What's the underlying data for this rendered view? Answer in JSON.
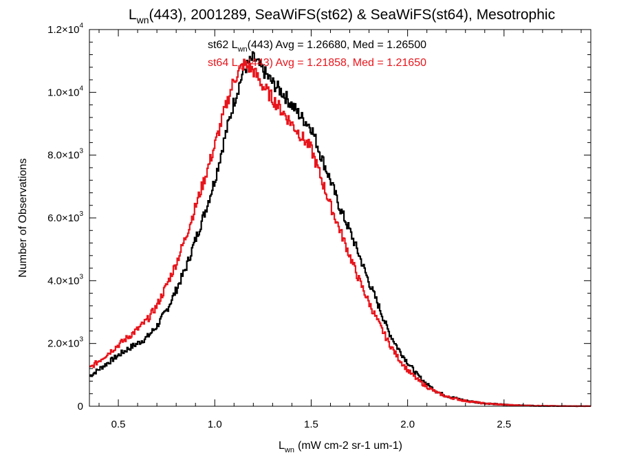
{
  "chart_data": {
    "type": "histogram-step",
    "title": {
      "main": "L",
      "sub": "wn",
      "rest": "(443), 2001289, SeaWiFS(st62) & SeaWiFS(st64), Mesotrophic"
    },
    "xlabel": {
      "main": "L",
      "sub": "wn",
      "units": "(mW cm-2 sr-1 um-1)"
    },
    "ylabel": "Number of Observations",
    "xlim": [
      0.35,
      2.95
    ],
    "ylim": [
      0,
      12000
    ],
    "x_ticks": [
      {
        "value": 0.5,
        "label": "0.5"
      },
      {
        "value": 1.0,
        "label": "1.0"
      },
      {
        "value": 1.5,
        "label": "1.5"
      },
      {
        "value": 2.0,
        "label": "2.0"
      },
      {
        "value": 2.5,
        "label": "2.5"
      }
    ],
    "y_ticks": [
      {
        "value": 0,
        "mant": "0",
        "exp": ""
      },
      {
        "value": 2000,
        "mant": "2.0×10",
        "exp": "3"
      },
      {
        "value": 4000,
        "mant": "4.0×10",
        "exp": "3"
      },
      {
        "value": 6000,
        "mant": "6.0×10",
        "exp": "3"
      },
      {
        "value": 8000,
        "mant": "8.0×10",
        "exp": "3"
      },
      {
        "value": 10000,
        "mant": "1.0×10",
        "exp": "4"
      },
      {
        "value": 12000,
        "mant": "1.2×10",
        "exp": "4"
      }
    ],
    "annotations": [
      {
        "prefix": "st62 L",
        "sub": "wn",
        "rest": "(443) Avg = 1.26680, Med = 1.26500",
        "color": "#000000"
      },
      {
        "prefix": "st64 L",
        "sub": "wn",
        "rest": "(443) Avg = 1.21858, Med = 1.21650",
        "color": "#e8141b"
      }
    ],
    "series": [
      {
        "color": "#000000",
        "points": [
          [
            0.35,
            950
          ],
          [
            0.4,
            1180
          ],
          [
            0.45,
            1400
          ],
          [
            0.5,
            1620
          ],
          [
            0.55,
            1830
          ],
          [
            0.6,
            2000
          ],
          [
            0.65,
            2200
          ],
          [
            0.7,
            2550
          ],
          [
            0.75,
            3050
          ],
          [
            0.8,
            3700
          ],
          [
            0.85,
            4400
          ],
          [
            0.9,
            5300
          ],
          [
            0.95,
            6200
          ],
          [
            1.0,
            7200
          ],
          [
            1.05,
            8500
          ],
          [
            1.1,
            9700
          ],
          [
            1.15,
            10700
          ],
          [
            1.2,
            11100
          ],
          [
            1.25,
            10700
          ],
          [
            1.3,
            10300
          ],
          [
            1.35,
            10000
          ],
          [
            1.4,
            9600
          ],
          [
            1.45,
            9200
          ],
          [
            1.5,
            8900
          ],
          [
            1.55,
            8000
          ],
          [
            1.6,
            7200
          ],
          [
            1.65,
            6300
          ],
          [
            1.7,
            5600
          ],
          [
            1.75,
            4800
          ],
          [
            1.8,
            3950
          ],
          [
            1.85,
            3200
          ],
          [
            1.9,
            2400
          ],
          [
            1.95,
            1850
          ],
          [
            2.0,
            1400
          ],
          [
            2.05,
            1000
          ],
          [
            2.1,
            700
          ],
          [
            2.15,
            480
          ],
          [
            2.2,
            330
          ],
          [
            2.3,
            180
          ],
          [
            2.4,
            95
          ],
          [
            2.5,
            50
          ],
          [
            2.6,
            25
          ],
          [
            2.7,
            12
          ],
          [
            2.8,
            6
          ],
          [
            2.95,
            2
          ]
        ]
      },
      {
        "color": "#e8141b",
        "points": [
          [
            0.35,
            1200
          ],
          [
            0.4,
            1450
          ],
          [
            0.45,
            1700
          ],
          [
            0.5,
            1950
          ],
          [
            0.55,
            2200
          ],
          [
            0.6,
            2450
          ],
          [
            0.65,
            2750
          ],
          [
            0.7,
            3200
          ],
          [
            0.75,
            3850
          ],
          [
            0.8,
            4550
          ],
          [
            0.85,
            5400
          ],
          [
            0.9,
            6350
          ],
          [
            0.95,
            7300
          ],
          [
            1.0,
            8300
          ],
          [
            1.05,
            9400
          ],
          [
            1.1,
            10400
          ],
          [
            1.15,
            10900
          ],
          [
            1.2,
            10700
          ],
          [
            1.25,
            10200
          ],
          [
            1.3,
            9800
          ],
          [
            1.35,
            9400
          ],
          [
            1.4,
            9000
          ],
          [
            1.45,
            8600
          ],
          [
            1.5,
            8200
          ],
          [
            1.55,
            7300
          ],
          [
            1.6,
            6400
          ],
          [
            1.65,
            5600
          ],
          [
            1.7,
            4800
          ],
          [
            1.75,
            4000
          ],
          [
            1.8,
            3300
          ],
          [
            1.85,
            2650
          ],
          [
            1.9,
            2050
          ],
          [
            1.95,
            1550
          ],
          [
            2.0,
            1150
          ],
          [
            2.05,
            850
          ],
          [
            2.1,
            620
          ],
          [
            2.15,
            440
          ],
          [
            2.2,
            310
          ],
          [
            2.3,
            170
          ],
          [
            2.4,
            90
          ],
          [
            2.5,
            48
          ],
          [
            2.6,
            24
          ],
          [
            2.7,
            12
          ],
          [
            2.8,
            6
          ],
          [
            2.95,
            2
          ]
        ]
      }
    ],
    "bin_width": 0.005
  }
}
